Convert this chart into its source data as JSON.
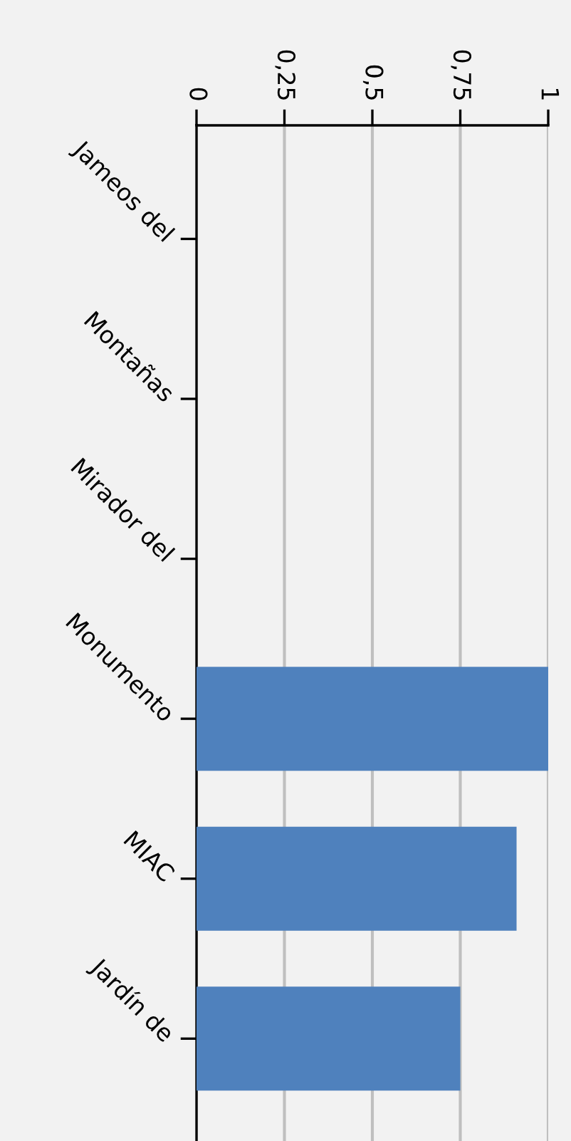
{
  "chart_data": {
    "type": "bar",
    "orientation": "horizontal",
    "categories": [
      "Jameos del",
      "Montañas",
      "Mirador del",
      "Monumento",
      "MIAC",
      "Jardín de"
    ],
    "values": [
      0,
      0,
      0,
      1,
      0.91,
      0.75
    ],
    "color": "#4f81bd",
    "xlim": [
      0,
      1
    ],
    "xticks": [
      0,
      {
        "value": 0.25,
        "label": "0,25"
      },
      {
        "value": 0.5,
        "label": "0,5"
      },
      {
        "value": 0.75,
        "label": "0,75"
      },
      1
    ],
    "grid": "x"
  }
}
